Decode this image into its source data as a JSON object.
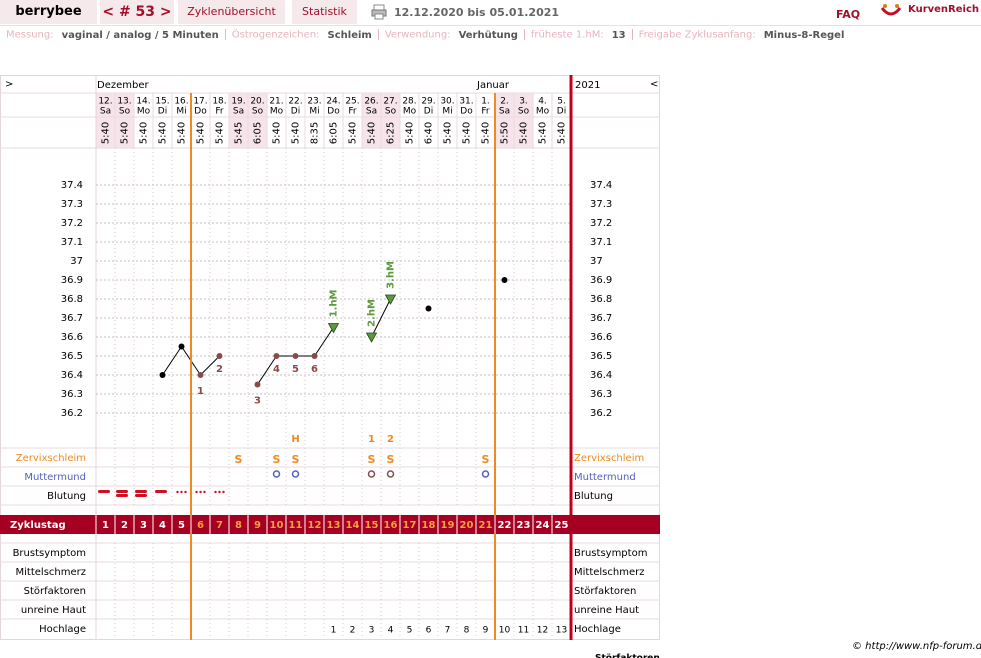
{
  "header": {
    "user": "berrybee",
    "cycle_nav": "< # 53 >",
    "tabs": [
      "Zyklenübersicht",
      "Statistik"
    ],
    "period": "12.12.2020 bis 05.01.2021",
    "faq": "FAQ",
    "logo": "KurvenReich"
  },
  "info": [
    {
      "label": "Messung:",
      "value": "vaginal / analog / 5 Minuten"
    },
    {
      "label": "Östrogenzeichen:",
      "value": "Schleim"
    },
    {
      "label": "Verwendung:",
      "value": "Verhütung"
    },
    {
      "label": "früheste 1.hM:",
      "value": "13"
    },
    {
      "label": "Freigabe Zyklusanfang:",
      "value": "Minus-8-Regel"
    }
  ],
  "chart": {
    "nav_left": ">",
    "nav_right": "<",
    "year": "2021",
    "months": [
      "Dezember",
      null,
      null,
      null,
      null,
      null,
      null,
      null,
      null,
      null,
      null,
      null,
      null,
      null,
      null,
      null,
      null,
      null,
      null,
      null,
      "Januar",
      null,
      null,
      null,
      null
    ],
    "dates": [
      "12.",
      "13.",
      "14.",
      "15.",
      "16.",
      "17.",
      "18.",
      "19.",
      "20.",
      "21.",
      "22.",
      "23.",
      "24.",
      "25.",
      "26.",
      "27.",
      "28.",
      "29.",
      "30.",
      "31.",
      "1.",
      "2.",
      "3.",
      "4.",
      "5."
    ],
    "weekdays": [
      "Sa",
      "So",
      "Mo",
      "Di",
      "Mi",
      "Do",
      "Fr",
      "Sa",
      "So",
      "Mo",
      "Di",
      "Mi",
      "Do",
      "Fr",
      "Sa",
      "So",
      "Mo",
      "Di",
      "Mi",
      "Do",
      "Fr",
      "Sa",
      "So",
      "Mo",
      "Di"
    ],
    "times": [
      "5:40",
      "5:40",
      "5:40",
      "5:40",
      "5:40",
      "5:40",
      "5:40",
      "5:45",
      "6:05",
      "5:40",
      "5:40",
      "8:35",
      "6:05",
      "5:40",
      "5:40",
      "6:25",
      "5:40",
      "6:40",
      "5:40",
      "5:40",
      "5:40",
      "5:50",
      "5:40",
      "5:40",
      "5:40"
    ],
    "ylim": [
      36.0,
      37.6
    ],
    "yticks": [
      37.4,
      37.3,
      37.2,
      37.1,
      37,
      36.9,
      36.8,
      36.7,
      36.6,
      36.5,
      36.4,
      36.3,
      36.2
    ],
    "temperatures": [
      null,
      null,
      null,
      36.4,
      36.55,
      36.4,
      36.5,
      null,
      36.35,
      36.5,
      36.5,
      36.5,
      36.65,
      null,
      36.6,
      36.8,
      null,
      36.75,
      null,
      null,
      null,
      36.9,
      null,
      null,
      null
    ],
    "point_colors": [
      null,
      null,
      null,
      "#000000",
      "#000000",
      "#8b4a4a",
      "#8b4a4a",
      null,
      "#8b4a4a",
      "#8b4a4a",
      "#8b4a4a",
      "#8b4a4a",
      "#5a9a3a",
      null,
      "#5a9a3a",
      "#5a9a3a",
      null,
      "#000000",
      null,
      null,
      null,
      "#000000",
      null,
      null,
      null
    ],
    "low_labels": [
      null,
      null,
      null,
      null,
      null,
      "1",
      "2",
      null,
      "3",
      "4",
      "5",
      "6",
      null,
      null,
      null,
      null,
      null,
      null,
      null,
      null,
      null,
      null,
      null,
      null,
      null
    ],
    "hm_labels": [
      null,
      null,
      null,
      null,
      null,
      null,
      null,
      null,
      null,
      null,
      null,
      null,
      "1.hM",
      null,
      "2.hM",
      "3.hM",
      null,
      null,
      null,
      null,
      null,
      null,
      null,
      null,
      null
    ],
    "mucus_notes": [
      null,
      null,
      null,
      null,
      null,
      null,
      null,
      null,
      null,
      null,
      "H",
      null,
      null,
      null,
      "1",
      "2",
      null,
      null,
      null,
      null,
      null,
      null,
      null,
      null,
      null
    ],
    "mucus": [
      null,
      null,
      null,
      null,
      null,
      null,
      null,
      "S",
      null,
      "S",
      "S",
      null,
      null,
      null,
      "S",
      "S",
      null,
      null,
      null,
      null,
      "S",
      null,
      null,
      null,
      null
    ],
    "rows_top": [
      "Zervixschleim",
      "Muttermund",
      "Blutung"
    ],
    "cycle_label": "Zyklustag",
    "cycle_days": [
      1,
      2,
      3,
      4,
      5,
      6,
      7,
      8,
      9,
      10,
      11,
      12,
      13,
      14,
      15,
      16,
      17,
      18,
      19,
      20,
      21,
      22,
      23,
      24,
      25
    ],
    "phase_lines": [
      6,
      22
    ],
    "rows_bottom": [
      "Brustsymptom",
      "Mittelschmerz",
      "Störfaktoren",
      "unreine Haut",
      "Hochlage"
    ],
    "hochlage": [
      null,
      null,
      null,
      null,
      null,
      null,
      null,
      null,
      null,
      null,
      null,
      null,
      1,
      2,
      3,
      4,
      5,
      6,
      7,
      8,
      9,
      10,
      11,
      12,
      13
    ]
  },
  "footer": {
    "copyright": "© http://www.nfp-forum.de",
    "cut_label": "Störfaktoren"
  }
}
